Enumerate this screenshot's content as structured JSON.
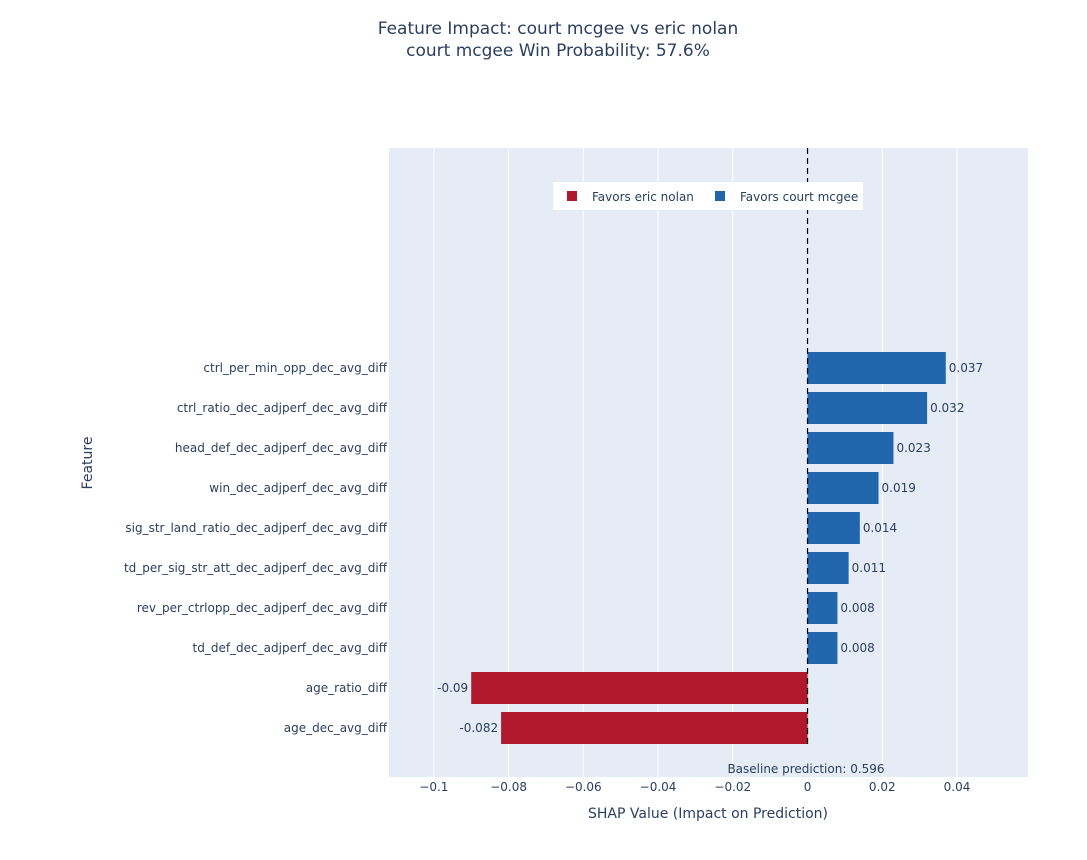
{
  "chart_data": {
    "type": "bar",
    "orientation": "horizontal",
    "title": "Feature Impact: court mcgee vs eric nolan",
    "subtitle": "court mcgee Win Probability: 57.6%",
    "xlabel": "SHAP Value (Impact on Prediction)",
    "ylabel": "Feature",
    "xlim": [
      -0.112,
      0.059
    ],
    "xticks": [
      -0.1,
      -0.08,
      -0.06,
      -0.04,
      -0.02,
      0,
      0.02,
      0.04
    ],
    "xtick_labels": [
      "−0.1",
      "−0.08",
      "−0.06",
      "−0.04",
      "−0.02",
      "0",
      "0.02",
      "0.04"
    ],
    "grid": true,
    "legend_position": "top-center",
    "categories": [
      "ctrl_per_min_opp_dec_avg_diff",
      "ctrl_ratio_dec_adjperf_dec_avg_diff",
      "head_def_dec_adjperf_dec_avg_diff",
      "win_dec_adjperf_dec_avg_diff",
      "sig_str_land_ratio_dec_adjperf_dec_avg_diff",
      "td_per_sig_str_att_dec_adjperf_dec_avg_diff",
      "rev_per_ctrlopp_dec_adjperf_dec_avg_diff",
      "td_def_dec_adjperf_dec_avg_diff",
      "age_ratio_diff",
      "age_dec_avg_diff"
    ],
    "values": [
      0.037,
      0.032,
      0.023,
      0.019,
      0.014,
      0.011,
      0.008,
      0.008,
      -0.09,
      -0.082
    ],
    "value_labels": [
      "0.037",
      "0.032",
      "0.023",
      "0.019",
      "0.014",
      "0.011",
      "0.008",
      "0.008",
      "-0.09",
      "-0.082"
    ],
    "series": [
      {
        "name": "Favors eric nolan",
        "color": "#b2182b"
      },
      {
        "name": "Favors court mcgee",
        "color": "#2166ac"
      }
    ],
    "annotation": "Baseline prediction: 0.596"
  },
  "colors": {
    "plot_bg": "#e5ecf6",
    "grid": "#ffffff",
    "negative": "#b2182b",
    "positive": "#2166ac",
    "text": "#2a3f5f"
  }
}
